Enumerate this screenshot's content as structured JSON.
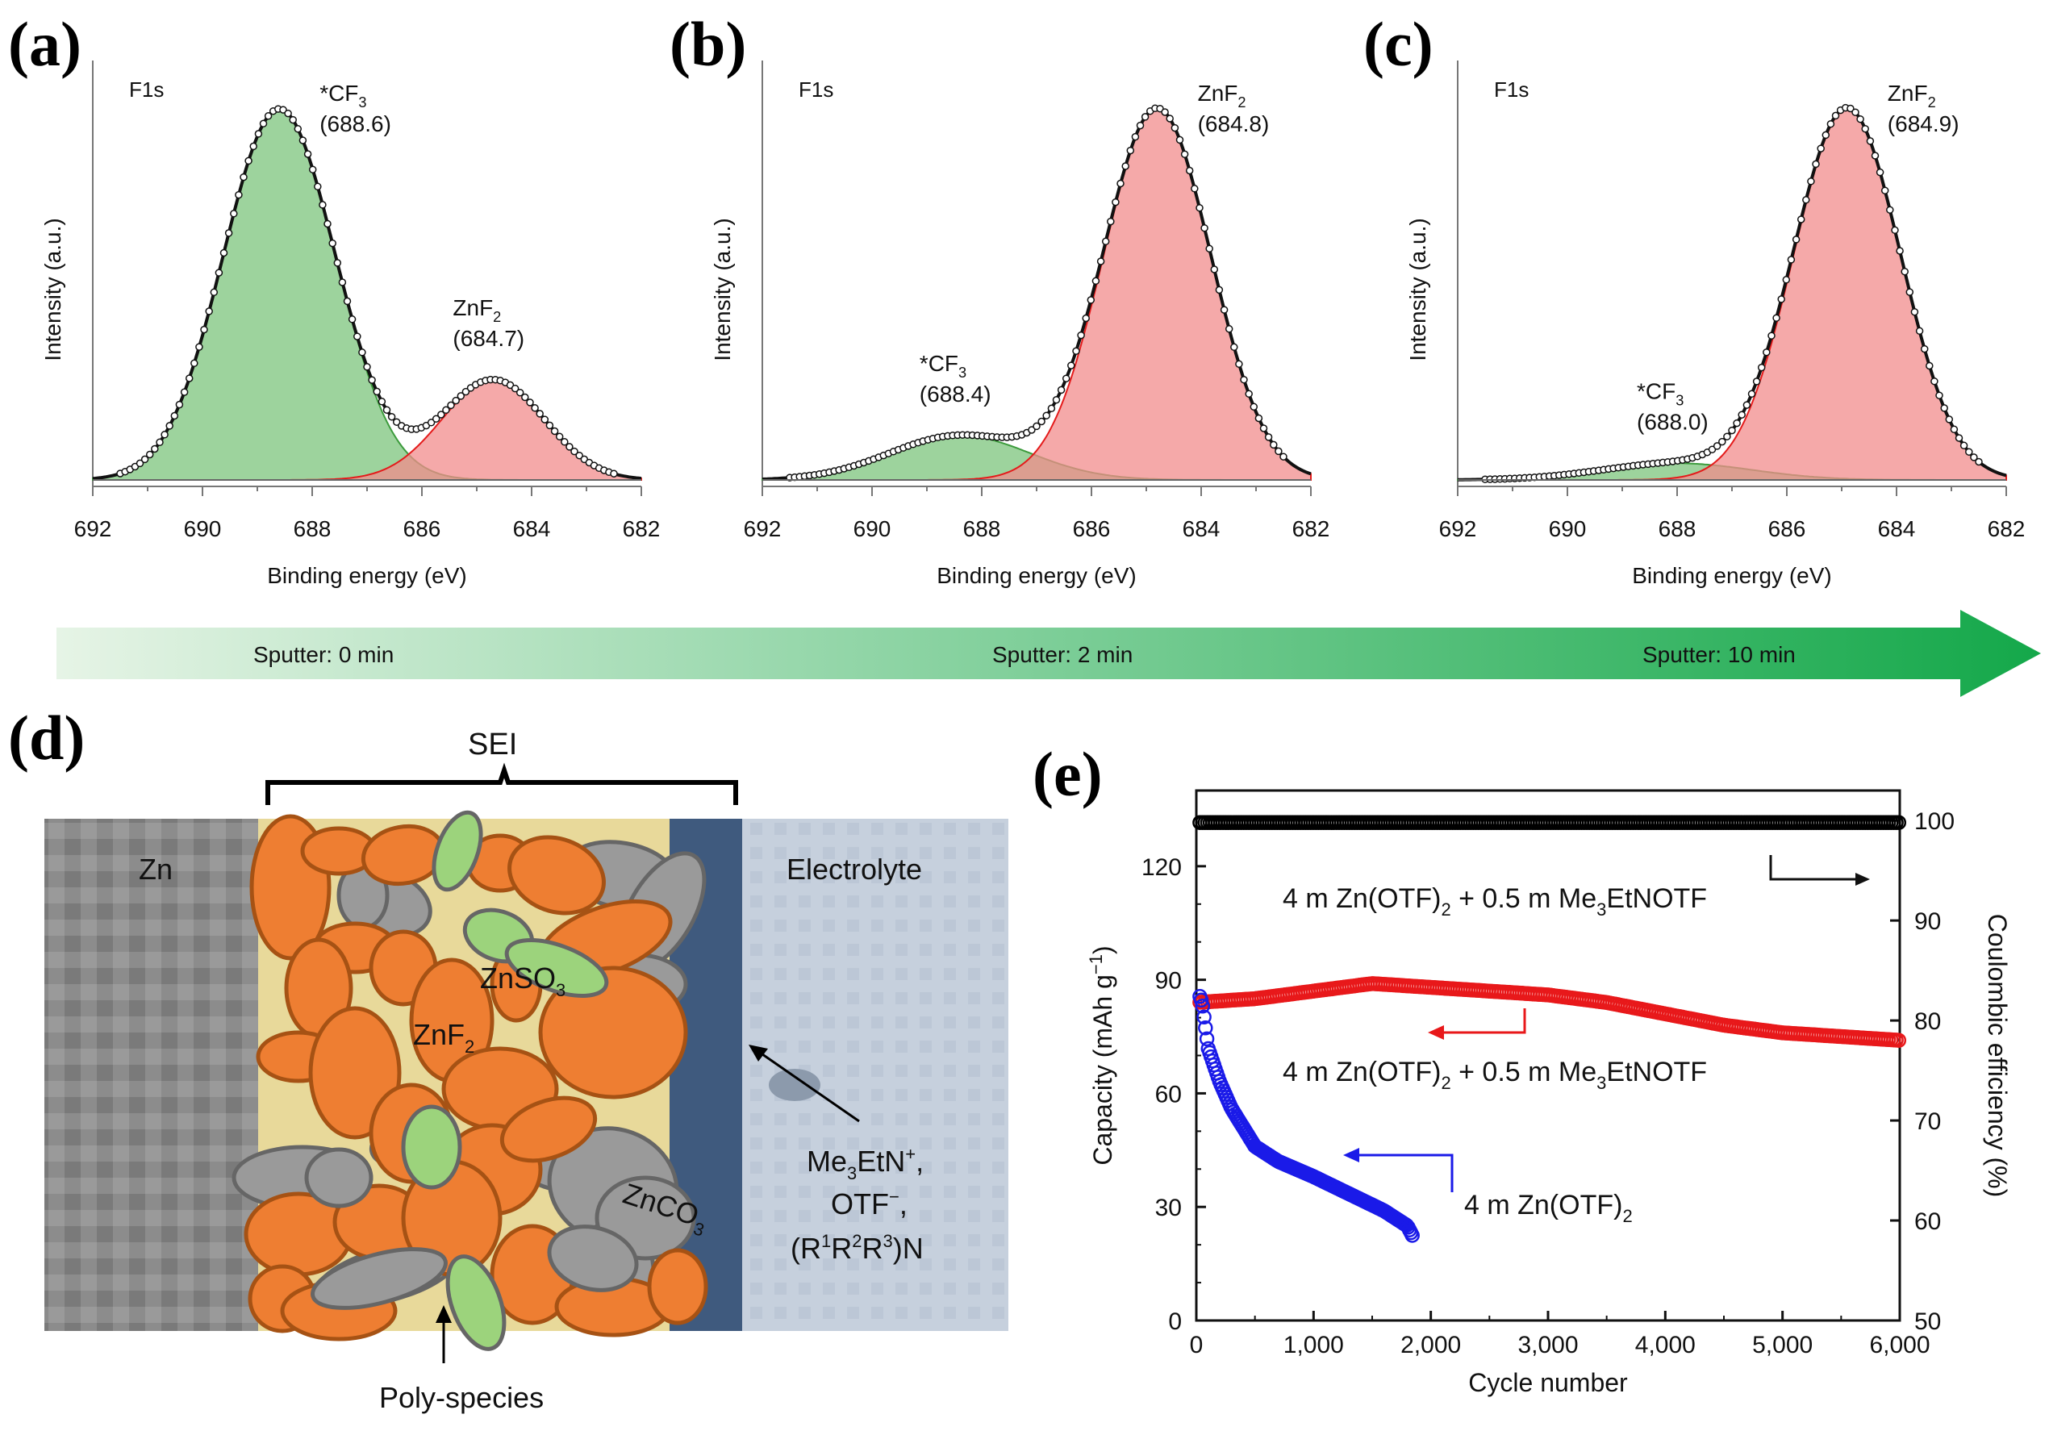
{
  "panels": {
    "a": "(a)",
    "b": "(b)",
    "c": "(c)",
    "d": "(d)",
    "e": "(e)"
  },
  "sputter_arrow": {
    "labels": [
      "Sputter: 0 min",
      "Sputter: 2 min",
      "Sputter: 10 min"
    ],
    "color_start": "#e6f4e6",
    "color_end": "#14a84a"
  },
  "chart_data": [
    {
      "id": "a",
      "type": "line",
      "title": "",
      "spectrum_label": "F1s",
      "xlabel": "Binding energy (eV)",
      "ylabel": "Intensity (a.u.)",
      "xlim": [
        692,
        682
      ],
      "x_ticks": [
        "692",
        "690",
        "688",
        "686",
        "684",
        "682"
      ],
      "series": [
        {
          "label": "*CF3",
          "annotation": "(688.6)",
          "center": 688.6,
          "height": 1.0,
          "fwhm": 2.4,
          "color": "#7cc47c"
        },
        {
          "label": "ZnF2",
          "annotation": "(684.7)",
          "center": 684.7,
          "height": 0.27,
          "fwhm": 2.2,
          "color": "#f28c8c"
        }
      ],
      "baseline": 0.0
    },
    {
      "id": "b",
      "type": "line",
      "title": "",
      "spectrum_label": "F1s",
      "xlabel": "Binding energy (eV)",
      "ylabel": "Intensity (a.u.)",
      "xlim": [
        692,
        682
      ],
      "x_ticks": [
        "692",
        "690",
        "688",
        "686",
        "684",
        "682"
      ],
      "series": [
        {
          "label": "*CF3",
          "annotation": "(688.4)",
          "center": 688.4,
          "height": 0.12,
          "fwhm": 3.0,
          "color": "#7cc47c"
        },
        {
          "label": "ZnF2",
          "annotation": "(684.8)",
          "center": 684.8,
          "height": 1.0,
          "fwhm": 2.3,
          "color": "#f28c8c"
        }
      ],
      "baseline": 0.0
    },
    {
      "id": "c",
      "type": "line",
      "title": "",
      "spectrum_label": "F1s",
      "xlabel": "Binding energy (eV)",
      "ylabel": "Intensity (a.u.)",
      "xlim": [
        692,
        682
      ],
      "x_ticks": [
        "692",
        "690",
        "688",
        "686",
        "684",
        "682"
      ],
      "series": [
        {
          "label": "*CF3",
          "annotation": "(688.0)",
          "center": 688.0,
          "height": 0.045,
          "fwhm": 3.2,
          "color": "#7cc47c"
        },
        {
          "label": "ZnF2",
          "annotation": "(684.9)",
          "center": 684.9,
          "height": 1.0,
          "fwhm": 2.3,
          "color": "#f28c8c"
        }
      ],
      "baseline": 0.0
    },
    {
      "id": "e",
      "type": "scatter",
      "title": "",
      "xlabel": "Cycle number",
      "ylabel_left": "Capacity (mAh g",
      "ylabel_left_sup": "−1",
      "ylabel_left_end": ")",
      "ylabel_right": "Coulombic efficiency (%)",
      "xlim": [
        0,
        6000
      ],
      "ylim_left": [
        0,
        140
      ],
      "ylim_right": [
        50,
        103
      ],
      "x_ticks": [
        "0",
        "1,000",
        "2,000",
        "3,000",
        "4,000",
        "5,000",
        "6,000"
      ],
      "y_ticks_left": [
        "0",
        "30",
        "60",
        "90",
        "120"
      ],
      "y_ticks_right": [
        "50",
        "60",
        "70",
        "80",
        "90",
        "100"
      ],
      "series": [
        {
          "name": "4 m Zn(OTF)2 + 0.5 m Me3EtNOTF",
          "axis": "right",
          "color": "#000000",
          "x": [
            0,
            500,
            1000,
            2000,
            3000,
            4000,
            5000,
            6000
          ],
          "y": [
            99.8,
            99.8,
            99.8,
            99.8,
            99.8,
            99.8,
            99.8,
            99.8
          ]
        },
        {
          "name": "4 m Zn(OTF)2 + 0.5 m Me3EtNOTF",
          "axis": "left",
          "color": "#e8181a",
          "x": [
            0,
            500,
            1000,
            1500,
            2000,
            2500,
            3000,
            3500,
            4000,
            4500,
            5000,
            5500,
            6000
          ],
          "y": [
            84,
            85,
            87,
            89,
            88,
            87,
            86,
            84,
            81,
            78,
            76,
            75,
            74
          ]
        },
        {
          "name": "4 m Zn(OTF)2",
          "axis": "left",
          "color": "#1a1ae8",
          "x": [
            0,
            50,
            100,
            200,
            300,
            400,
            500,
            700,
            1000,
            1200,
            1400,
            1600,
            1700,
            1800,
            1850
          ],
          "y": [
            88,
            84,
            72,
            63,
            56,
            51,
            46,
            42,
            38,
            35,
            32,
            29,
            27,
            25,
            22
          ]
        }
      ],
      "annotations": {
        "ce_label": "4 m Zn(OTF)",
        "ce_label_sub": "2",
        "ce_label_mid": " + 0.5 m Me",
        "ce_label_sub2": "3",
        "ce_label_end": "EtNOTF",
        "red_label": "4 m Zn(OTF)",
        "red_label_sub": "2",
        "red_label_mid": " + 0.5 m Me",
        "red_label_sub2": "3",
        "red_label_end": "EtNOTF",
        "blue_label": "4 m Zn(OTF)",
        "blue_label_sub": "2"
      }
    }
  ],
  "schematic": {
    "sei_label": "SEI",
    "zn_label": "Zn",
    "electrolyte_label": "Electrolyte",
    "znso3": "ZnSO",
    "znso3_sub": "3",
    "znf2": "ZnF",
    "znf2_sub": "2",
    "znco3": "ZnCO",
    "znco3_sub": "3",
    "me3etn": "Me",
    "me3etn_sub": "3",
    "me3etn_mid": "EtN",
    "me3etn_sup": "+",
    "me3etn_end": ",",
    "otf": "OTF",
    "otf_sup": "−",
    "otf_end": ",",
    "amine_a": "(R",
    "amine_s1": "1",
    "amine_b": "R",
    "amine_s2": "2",
    "amine_c": "R",
    "amine_s3": "3",
    "amine_d": ")N",
    "poly_label": "Poly-species",
    "colors": {
      "orange": "#ee7e32",
      "gray": "#9a9a9a",
      "green": "#9cd37c",
      "outline": "#a65214",
      "zn_bg": "#888888",
      "electrolyte_bg": "#c3cedc",
      "sei_bg": "#e8d99a",
      "interface": "#3f5a7e"
    }
  }
}
